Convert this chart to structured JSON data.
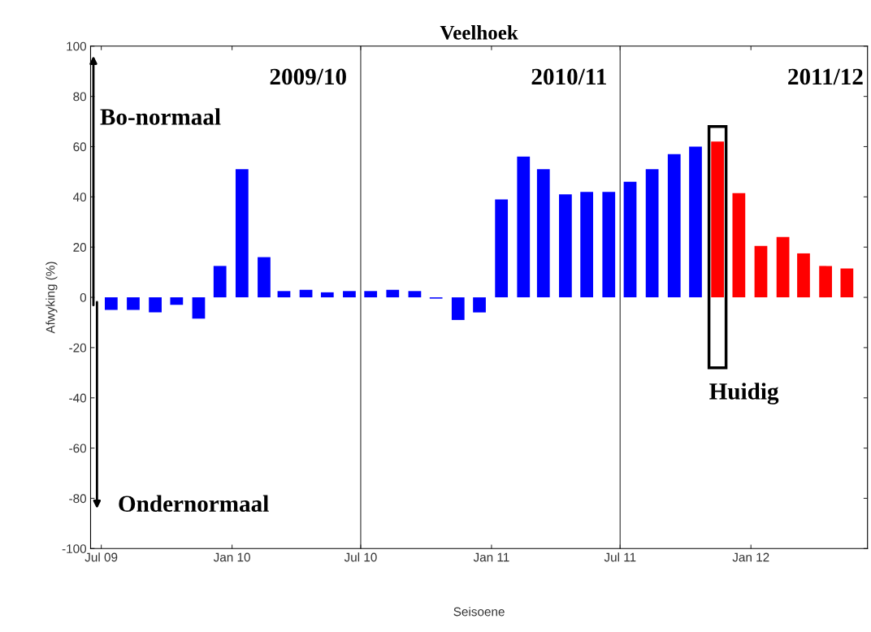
{
  "chart_data": {
    "type": "bar",
    "title": "Veelhoek",
    "xlabel": "Seisoene",
    "ylabel": "Afwyking (%)",
    "x": [
      "2009-07-15",
      "2009-08-15",
      "2009-09-15",
      "2009-10-15",
      "2009-11-15",
      "2009-12-15",
      "2010-01-15",
      "2010-02-15",
      "2010-03-15",
      "2010-04-15",
      "2010-05-15",
      "2010-06-15",
      "2010-07-15",
      "2010-08-15",
      "2010-09-15",
      "2010-10-15",
      "2010-11-15",
      "2010-12-15",
      "2011-01-15",
      "2011-02-15",
      "2011-03-15",
      "2011-04-15",
      "2011-05-15",
      "2011-06-15",
      "2011-07-15",
      "2011-08-15",
      "2011-09-15",
      "2011-10-15",
      "2011-11-15",
      "2011-12-15",
      "2012-01-15",
      "2012-02-15",
      "2012-03-15",
      "2012-04-15",
      "2012-05-15"
    ],
    "values": [
      -5,
      -5,
      -6,
      -3,
      -8.5,
      12.5,
      51,
      16,
      2.5,
      3,
      2,
      2.5,
      2.5,
      3,
      2.5,
      -0.5,
      -9,
      -6,
      39,
      56,
      51,
      41,
      42,
      42,
      46,
      51,
      57,
      60,
      62,
      41.5,
      20.5,
      24,
      17.5,
      12.5,
      11.5
    ],
    "colors": [
      "#0000ff",
      "#0000ff",
      "#0000ff",
      "#0000ff",
      "#0000ff",
      "#0000ff",
      "#0000ff",
      "#0000ff",
      "#0000ff",
      "#0000ff",
      "#0000ff",
      "#0000ff",
      "#0000ff",
      "#0000ff",
      "#0000ff",
      "#0000ff",
      "#0000ff",
      "#0000ff",
      "#0000ff",
      "#0000ff",
      "#0000ff",
      "#0000ff",
      "#0000ff",
      "#0000ff",
      "#0000ff",
      "#0000ff",
      "#0000ff",
      "#0000ff",
      "#ff0000",
      "#ff0000",
      "#ff0000",
      "#ff0000",
      "#ff0000",
      "#ff0000",
      "#ff0000"
    ],
    "xlim": [
      "2009-06-16",
      "2012-06-13"
    ],
    "xticks": [
      {
        "value": "2009-07-01",
        "label": "Jul 09"
      },
      {
        "value": "2010-01-01",
        "label": "Jan 10"
      },
      {
        "value": "2010-07-01",
        "label": "Jul 10"
      },
      {
        "value": "2011-01-01",
        "label": "Jan 11"
      },
      {
        "value": "2011-07-01",
        "label": "Jul 11"
      },
      {
        "value": "2012-01-01",
        "label": "Jan 12"
      }
    ],
    "ylim": [
      -100,
      100
    ],
    "yticks": [
      -100,
      -80,
      -60,
      -40,
      -20,
      0,
      20,
      40,
      60,
      80,
      100
    ],
    "ref_lines": [
      {
        "axis": "x",
        "value": "2010-07-01",
        "color": "#555555"
      },
      {
        "axis": "x",
        "value": "2011-07-01",
        "color": "#555555"
      }
    ],
    "annotations": [
      "2009/10",
      "2010/11",
      "2011/12",
      "Bo-normaal",
      "Ondernormaal",
      "Huidig"
    ],
    "grid": false,
    "legend": false
  }
}
